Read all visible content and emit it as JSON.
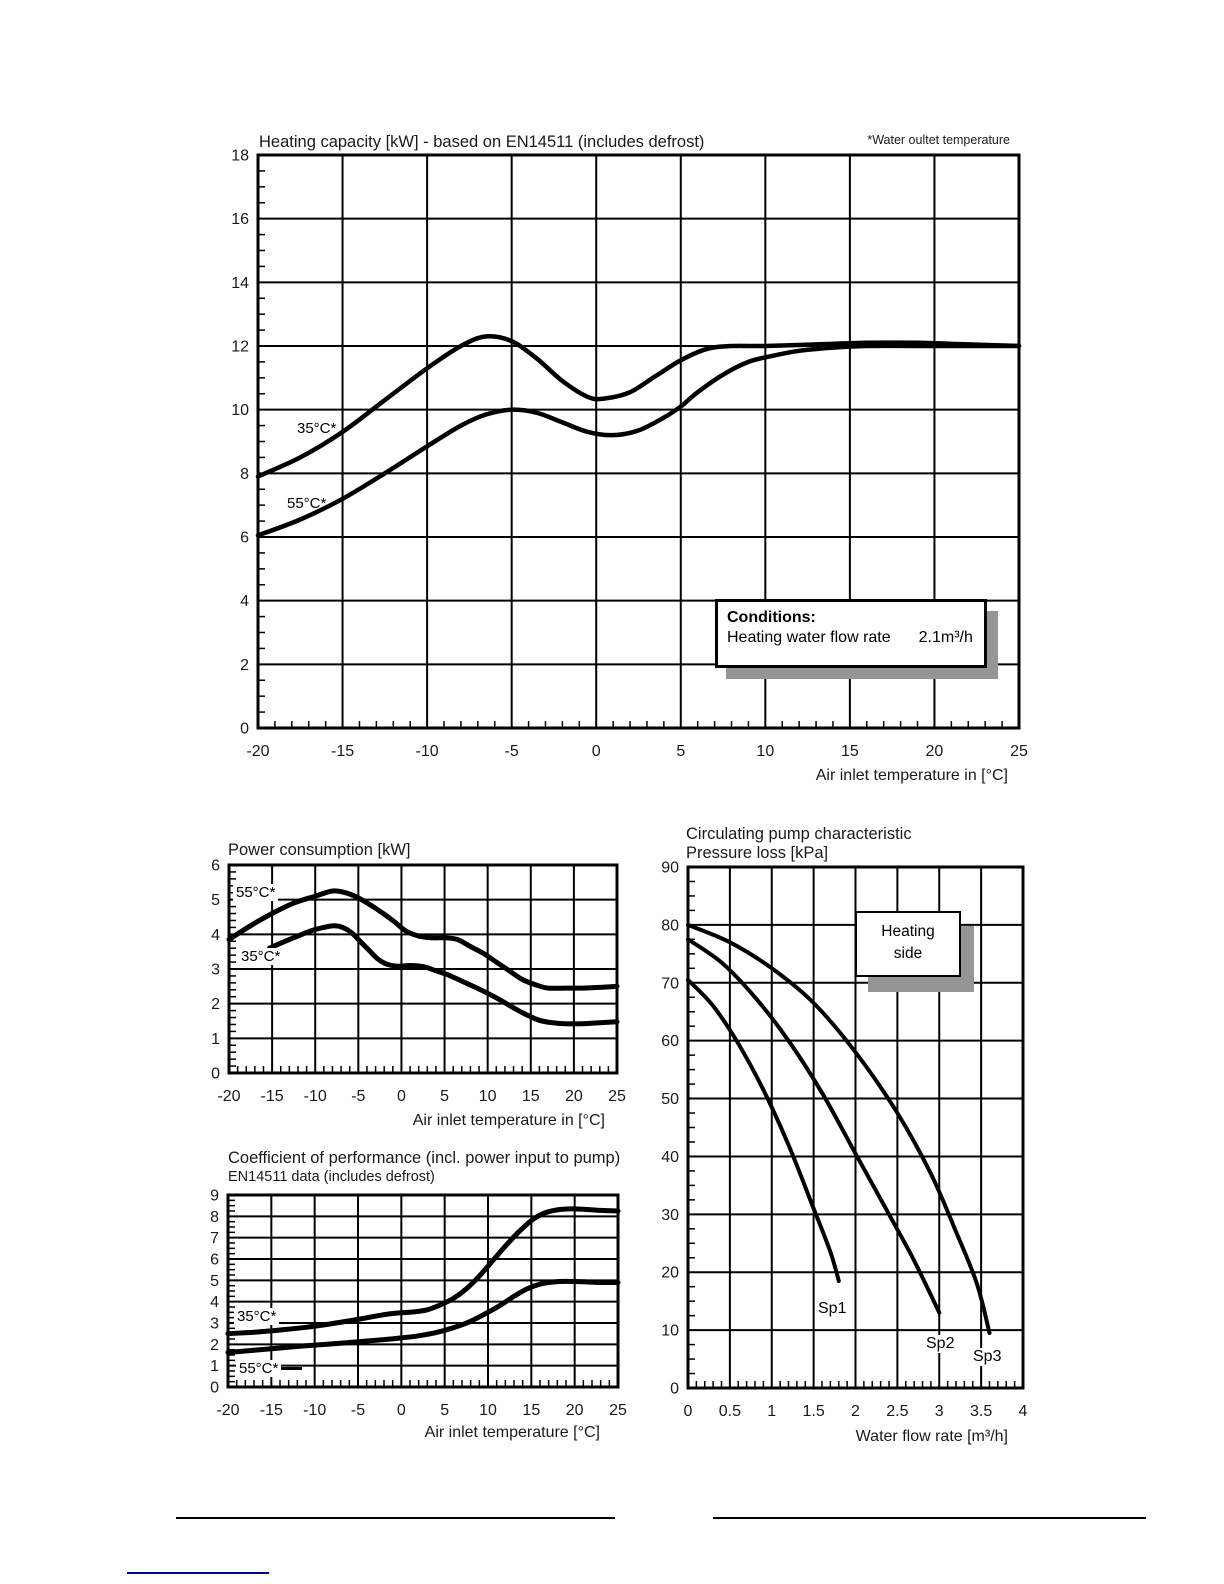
{
  "chart_data": [
    {
      "name": "heating-capacity",
      "type": "line",
      "title": "Heating capacity [kW] - based on EN14511  (includes defrost)",
      "note": "*Water oultet temperature",
      "xlabel": "Air inlet temperature  in [°C]",
      "ylabel": "Heating capacity [kW]",
      "xlim": [
        -20,
        25
      ],
      "ylim": [
        0,
        18
      ],
      "xstep": 5,
      "ystep": 2,
      "xminor": 1,
      "yminor": 0.5,
      "grid": true,
      "legend_position": "on-curve",
      "annotation": {
        "heading": "Conditions:",
        "label": "Heating water flow rate",
        "value": "2.1m³/h"
      },
      "series": [
        {
          "name": "35°C*",
          "points": [
            [
              -20,
              7.9
            ],
            [
              -17.5,
              8.5
            ],
            [
              -15,
              9.3
            ],
            [
              -12.5,
              10.3
            ],
            [
              -10,
              11.3
            ],
            [
              -8,
              12.0
            ],
            [
              -6.5,
              12.3
            ],
            [
              -5,
              12.15
            ],
            [
              -3.5,
              11.6
            ],
            [
              -2,
              10.9
            ],
            [
              -0.5,
              10.4
            ],
            [
              0.5,
              10.35
            ],
            [
              2,
              10.55
            ],
            [
              3.5,
              11.05
            ],
            [
              5,
              11.55
            ],
            [
              6.5,
              11.9
            ],
            [
              8,
              12.0
            ],
            [
              10,
              12.0
            ],
            [
              13,
              12.05
            ],
            [
              16,
              12.1
            ],
            [
              19,
              12.1
            ],
            [
              22,
              12.05
            ],
            [
              25,
              12.0
            ]
          ]
        },
        {
          "name": "55°C*",
          "points": [
            [
              -20,
              6.05
            ],
            [
              -17.5,
              6.55
            ],
            [
              -15,
              7.2
            ],
            [
              -12.5,
              8.0
            ],
            [
              -10,
              8.85
            ],
            [
              -8,
              9.5
            ],
            [
              -6.5,
              9.85
            ],
            [
              -5,
              10.0
            ],
            [
              -3.5,
              9.9
            ],
            [
              -2,
              9.6
            ],
            [
              -0.5,
              9.3
            ],
            [
              1,
              9.2
            ],
            [
              2.5,
              9.35
            ],
            [
              4,
              9.75
            ],
            [
              5,
              10.1
            ],
            [
              6,
              10.55
            ],
            [
              7.5,
              11.1
            ],
            [
              9,
              11.5
            ],
            [
              10.5,
              11.7
            ],
            [
              12,
              11.85
            ],
            [
              14,
              11.95
            ],
            [
              16,
              12.0
            ],
            [
              19,
              12.0
            ],
            [
              22,
              12.0
            ],
            [
              25,
              12.0
            ]
          ]
        }
      ]
    },
    {
      "name": "power-consumption",
      "type": "line",
      "title": "Power consumption [kW]",
      "xlabel": "Air inlet temperature  in [°C]",
      "ylabel": "Power consumption [kW]",
      "xlim": [
        -20,
        25
      ],
      "ylim": [
        0,
        6
      ],
      "xstep": 5,
      "ystep": 1,
      "xminor": 1,
      "yminor": 0.2,
      "grid": true,
      "legend_position": "on-curve",
      "series": [
        {
          "name": "55°C*",
          "points": [
            [
              -20,
              3.85
            ],
            [
              -17.5,
              4.25
            ],
            [
              -15,
              4.6
            ],
            [
              -12.5,
              4.9
            ],
            [
              -10,
              5.1
            ],
            [
              -8,
              5.25
            ],
            [
              -6.5,
              5.2
            ],
            [
              -5,
              5.05
            ],
            [
              -3,
              4.75
            ],
            [
              -1,
              4.4
            ],
            [
              0.5,
              4.1
            ],
            [
              2,
              3.95
            ],
            [
              3.5,
              3.9
            ],
            [
              5,
              3.9
            ],
            [
              6.5,
              3.85
            ],
            [
              8,
              3.65
            ],
            [
              9.5,
              3.45
            ],
            [
              11,
              3.2
            ],
            [
              12.5,
              2.95
            ],
            [
              14,
              2.7
            ],
            [
              15.5,
              2.55
            ],
            [
              17,
              2.45
            ],
            [
              19,
              2.45
            ],
            [
              21,
              2.45
            ],
            [
              23,
              2.47
            ],
            [
              25,
              2.5
            ]
          ]
        },
        {
          "name": "35°C*",
          "points": [
            [
              -15.3,
              3.6
            ],
            [
              -13.5,
              3.8
            ],
            [
              -12,
              3.95
            ],
            [
              -10.5,
              4.1
            ],
            [
              -9,
              4.2
            ],
            [
              -7.8,
              4.25
            ],
            [
              -6.8,
              4.2
            ],
            [
              -5.8,
              4.05
            ],
            [
              -4.8,
              3.8
            ],
            [
              -3.8,
              3.55
            ],
            [
              -2.8,
              3.3
            ],
            [
              -1.8,
              3.15
            ],
            [
              -0.5,
              3.08
            ],
            [
              1,
              3.1
            ],
            [
              2.5,
              3.07
            ],
            [
              4,
              2.95
            ],
            [
              5.5,
              2.82
            ],
            [
              7,
              2.65
            ],
            [
              8.5,
              2.48
            ],
            [
              10,
              2.3
            ],
            [
              11.5,
              2.1
            ],
            [
              13,
              1.88
            ],
            [
              14.5,
              1.68
            ],
            [
              16,
              1.52
            ],
            [
              17.5,
              1.45
            ],
            [
              19,
              1.42
            ],
            [
              21,
              1.42
            ],
            [
              23,
              1.45
            ],
            [
              25,
              1.48
            ]
          ]
        }
      ]
    },
    {
      "name": "coefficient-of-performance",
      "type": "line",
      "title": "Coefficient of performance (incl. power input to pump)",
      "subtitle": "EN14511 data (includes defrost)",
      "xlabel": "Air inlet temperature [°C]",
      "ylabel": "COP",
      "xlim": [
        -20,
        25
      ],
      "ylim": [
        0,
        9
      ],
      "xstep": 5,
      "ystep": 1,
      "xminor": 1,
      "yminor": 0.25,
      "grid": true,
      "legend_position": "on-curve",
      "series": [
        {
          "name": "35°C*",
          "points": [
            [
              -20,
              2.5
            ],
            [
              -17,
              2.57
            ],
            [
              -14,
              2.67
            ],
            [
              -11,
              2.8
            ],
            [
              -8,
              2.97
            ],
            [
              -5,
              3.17
            ],
            [
              -3,
              3.32
            ],
            [
              -1.5,
              3.42
            ],
            [
              0,
              3.48
            ],
            [
              1.5,
              3.52
            ],
            [
              3,
              3.62
            ],
            [
              4.5,
              3.85
            ],
            [
              6,
              4.15
            ],
            [
              7.5,
              4.6
            ],
            [
              9,
              5.2
            ],
            [
              10.5,
              5.9
            ],
            [
              12,
              6.6
            ],
            [
              13.5,
              7.25
            ],
            [
              15,
              7.8
            ],
            [
              16.5,
              8.15
            ],
            [
              18,
              8.3
            ],
            [
              19.5,
              8.35
            ],
            [
              21,
              8.33
            ],
            [
              23,
              8.28
            ],
            [
              25,
              8.25
            ]
          ]
        },
        {
          "name": "55°C*",
          "points": [
            [
              -20,
              1.62
            ],
            [
              -17,
              1.72
            ],
            [
              -14,
              1.83
            ],
            [
              -11,
              1.93
            ],
            [
              -8,
              2.02
            ],
            [
              -5,
              2.12
            ],
            [
              -2,
              2.22
            ],
            [
              0,
              2.3
            ],
            [
              2,
              2.4
            ],
            [
              4,
              2.55
            ],
            [
              6,
              2.78
            ],
            [
              8,
              3.08
            ],
            [
              10,
              3.5
            ],
            [
              11.5,
              3.85
            ],
            [
              13,
              4.25
            ],
            [
              14.5,
              4.6
            ],
            [
              16,
              4.82
            ],
            [
              17.5,
              4.92
            ],
            [
              19,
              4.95
            ],
            [
              21,
              4.93
            ],
            [
              23,
              4.9
            ],
            [
              25,
              4.9
            ]
          ]
        }
      ]
    },
    {
      "name": "circulating-pump-characteristic",
      "type": "line",
      "title": "Circulating pump characteristic",
      "subtitle": "Pressure loss [kPa]",
      "xlabel": "Water flow rate [m³/h]",
      "ylabel": "Pressure loss [kPa]",
      "xlim": [
        0,
        4
      ],
      "ylim": [
        0,
        90
      ],
      "xstep": 0.5,
      "ystep": 10,
      "xminor": 0.1,
      "yminor": 2.5,
      "grid": true,
      "legend_position": "on-curve",
      "annotation": {
        "line1": "Heating",
        "line2": "side"
      },
      "series": [
        {
          "name": "Sp1",
          "points": [
            [
              0,
              70.5
            ],
            [
              0.3,
              66
            ],
            [
              0.6,
              59.5
            ],
            [
              0.9,
              51.5
            ],
            [
              1.2,
              42
            ],
            [
              1.5,
              31
            ],
            [
              1.7,
              23.5
            ],
            [
              1.8,
              18.5
            ]
          ]
        },
        {
          "name": "Sp2",
          "points": [
            [
              0,
              77.5
            ],
            [
              0.4,
              73.5
            ],
            [
              0.8,
              67.5
            ],
            [
              1.2,
              60
            ],
            [
              1.6,
              51
            ],
            [
              2.0,
              40.5
            ],
            [
              2.4,
              30
            ],
            [
              2.7,
              22
            ],
            [
              3.0,
              13
            ]
          ]
        },
        {
          "name": "Sp3",
          "points": [
            [
              0,
              80
            ],
            [
              0.5,
              77
            ],
            [
              1.0,
              72.5
            ],
            [
              1.5,
              66.5
            ],
            [
              2.0,
              58
            ],
            [
              2.5,
              47.5
            ],
            [
              2.9,
              37
            ],
            [
              3.2,
              27
            ],
            [
              3.45,
              18
            ],
            [
              3.6,
              9.5
            ]
          ]
        }
      ]
    }
  ],
  "footer": {
    "rule_color": "#000000",
    "footnote_underline_color": "#00008b"
  }
}
